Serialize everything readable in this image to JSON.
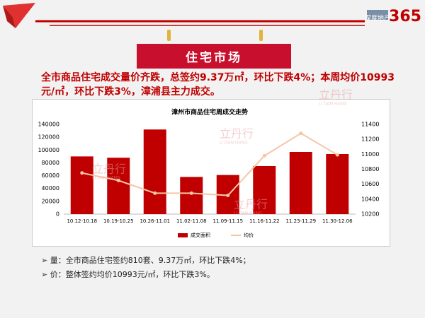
{
  "header": {
    "logo_text": "深度地产",
    "logo_number": "365",
    "banner": "住宅市场",
    "headline": "全市商品住宅成交量价齐跌，总签约9.37万㎡，环比下跌4%；本周均价10993元/㎡，环比下跌3%，漳浦县主力成交。"
  },
  "watermark": {
    "name": "立丹行",
    "sub": "LI DAN HANG"
  },
  "chart_data": {
    "type": "bar-line",
    "title": "漳州市商品住宅周成交走势",
    "categories": [
      "10.12-10.18",
      "10.19-10.25",
      "10.26-11.01",
      "11.02-11.08",
      "11.09-11.15",
      "11.16-11.22",
      "11.23-11.29",
      "11.30-12.06"
    ],
    "series": [
      {
        "name": "成交面积",
        "color": "#c00000",
        "values": [
          90000,
          88000,
          132000,
          58000,
          61000,
          75000,
          97000,
          93700
        ]
      },
      {
        "name": "均价",
        "color": "#f5c6a5",
        "axis": "y2",
        "values": [
          10750,
          10650,
          10480,
          10480,
          10450,
          10980,
          11280,
          10993
        ]
      }
    ],
    "ylim": [
      0,
      140000
    ],
    "yticks": [
      0,
      20000,
      40000,
      60000,
      80000,
      100000,
      120000,
      140000
    ],
    "y2lim": [
      10200,
      11400
    ],
    "y2ticks": [
      10200,
      10400,
      10600,
      10800,
      11000,
      11200,
      11400
    ],
    "grid": false,
    "legend": "bottom"
  },
  "bullets": [
    "量：全市商品住宅签约810套、9.37万㎡，环比下跌4%；",
    "价：整体签约均价10993元/㎡，环比下跌3%。"
  ]
}
